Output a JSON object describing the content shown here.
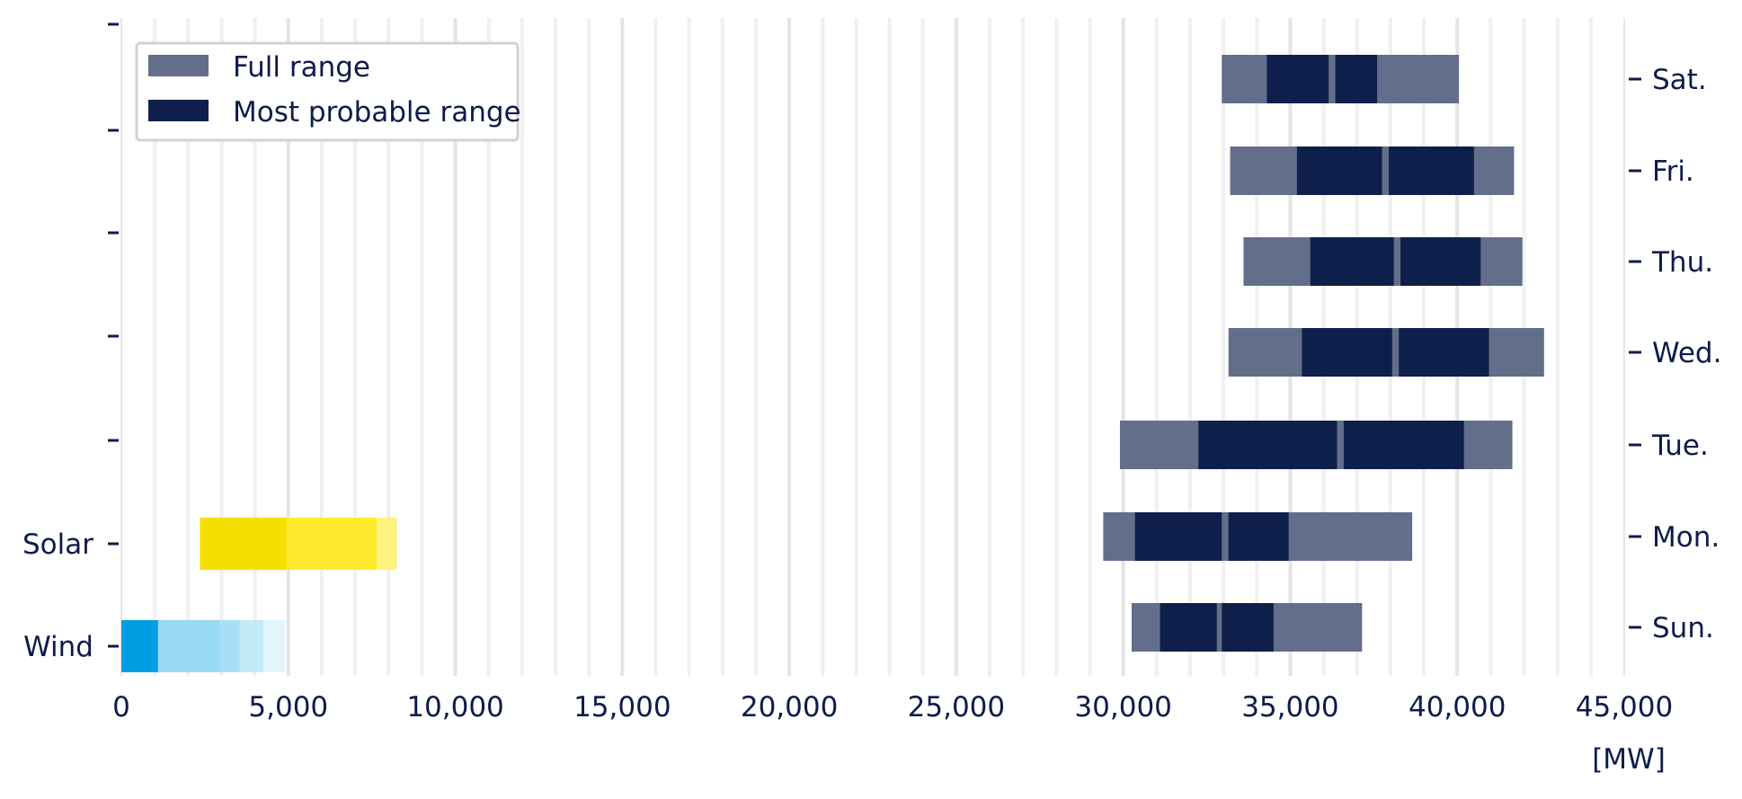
{
  "chart_data": {
    "type": "bar",
    "orientation": "horizontal-range",
    "x_unit_label": "[MW]",
    "xlim": [
      0,
      45000
    ],
    "x_ticks": [
      "0",
      "5,000",
      "10,000",
      "15,000",
      "20,000",
      "25,000",
      "30,000",
      "35,000",
      "40,000",
      "45,000"
    ],
    "x_tick_values": [
      0,
      5000,
      10000,
      15000,
      20000,
      25000,
      30000,
      35000,
      40000,
      45000
    ],
    "grid": true,
    "legend": {
      "placement": "top-left",
      "entries": [
        {
          "label": "Full range",
          "color": "#636e8a"
        },
        {
          "label": "Most probable range",
          "color": "#0f1f4b"
        }
      ]
    },
    "left_categories": [
      "Wind",
      "Solar"
    ],
    "right_categories": [
      "Sun.",
      "Mon.",
      "Tue.",
      "Wed.",
      "Thu.",
      "Fri.",
      "Sat."
    ],
    "generation": [
      {
        "name": "Wind",
        "segments": [
          {
            "start": 0,
            "end": 1100,
            "color": "#009fe3"
          },
          {
            "start": 1100,
            "end": 2950,
            "color": "#99d9f3"
          },
          {
            "start": 2950,
            "end": 3550,
            "color": "#a8dff5"
          },
          {
            "start": 3550,
            "end": 4250,
            "color": "#c2e9f8"
          },
          {
            "start": 4250,
            "end": 4900,
            "color": "#e2f4fc"
          }
        ]
      },
      {
        "name": "Solar",
        "segments": [
          {
            "start": 2350,
            "end": 4950,
            "color": "#f5df00"
          },
          {
            "start": 4950,
            "end": 7650,
            "color": "#ffeb2e"
          },
          {
            "start": 7650,
            "end": 8250,
            "color": "#fff27e"
          }
        ]
      }
    ],
    "demand": [
      {
        "day": "Sun.",
        "full": [
          30250,
          37150
        ],
        "probable": [
          [
            31100,
            32800
          ],
          [
            32950,
            34500
          ]
        ]
      },
      {
        "day": "Mon.",
        "full": [
          29400,
          38650
        ],
        "probable": [
          [
            30350,
            32950
          ],
          [
            33150,
            34950
          ]
        ]
      },
      {
        "day": "Tue.",
        "full": [
          29900,
          41650
        ],
        "probable": [
          [
            32250,
            36400
          ],
          [
            36600,
            40200
          ]
        ]
      },
      {
        "day": "Wed.",
        "full": [
          33150,
          42600
        ],
        "probable": [
          [
            35350,
            38050
          ],
          [
            38250,
            40950
          ]
        ]
      },
      {
        "day": "Thu.",
        "full": [
          33600,
          41950
        ],
        "probable": [
          [
            35600,
            38100
          ],
          [
            38300,
            40700
          ]
        ]
      },
      {
        "day": "Fri.",
        "full": [
          33200,
          41700
        ],
        "probable": [
          [
            35200,
            37750
          ],
          [
            37950,
            40500
          ]
        ]
      },
      {
        "day": "Sat.",
        "full": [
          32950,
          40050
        ],
        "probable": [
          [
            34300,
            36150
          ],
          [
            36350,
            37600
          ]
        ]
      }
    ]
  }
}
